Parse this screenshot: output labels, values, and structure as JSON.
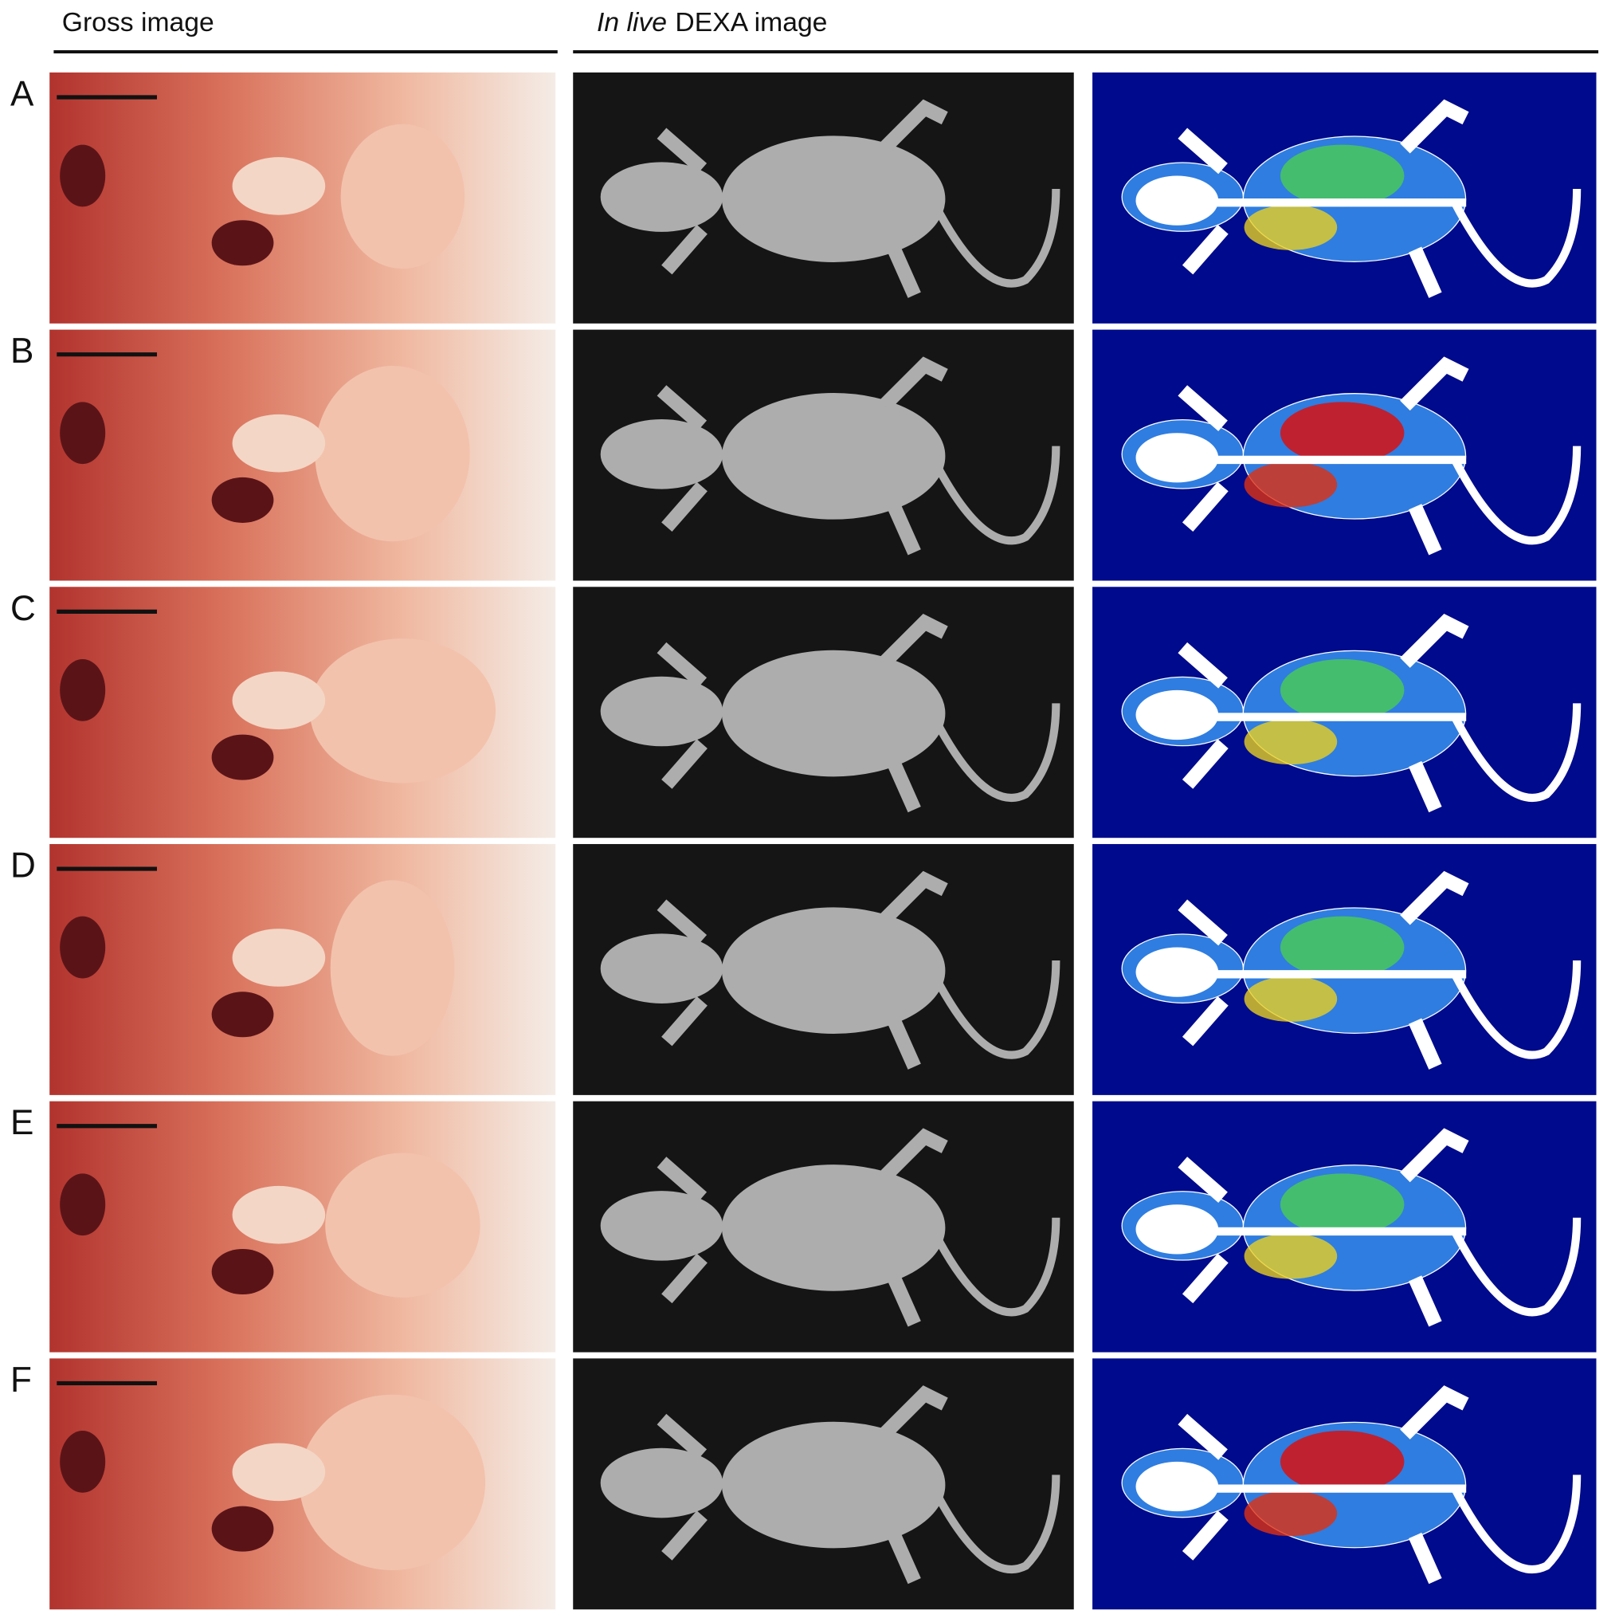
{
  "header": {
    "gross": "Gross image",
    "dexa_italic": "In live",
    "dexa_rest": "DEXA image"
  },
  "rows": [
    {
      "label": "A"
    },
    {
      "label": "B"
    },
    {
      "label": "C"
    },
    {
      "label": "D"
    },
    {
      "label": "E"
    },
    {
      "label": "F"
    }
  ]
}
